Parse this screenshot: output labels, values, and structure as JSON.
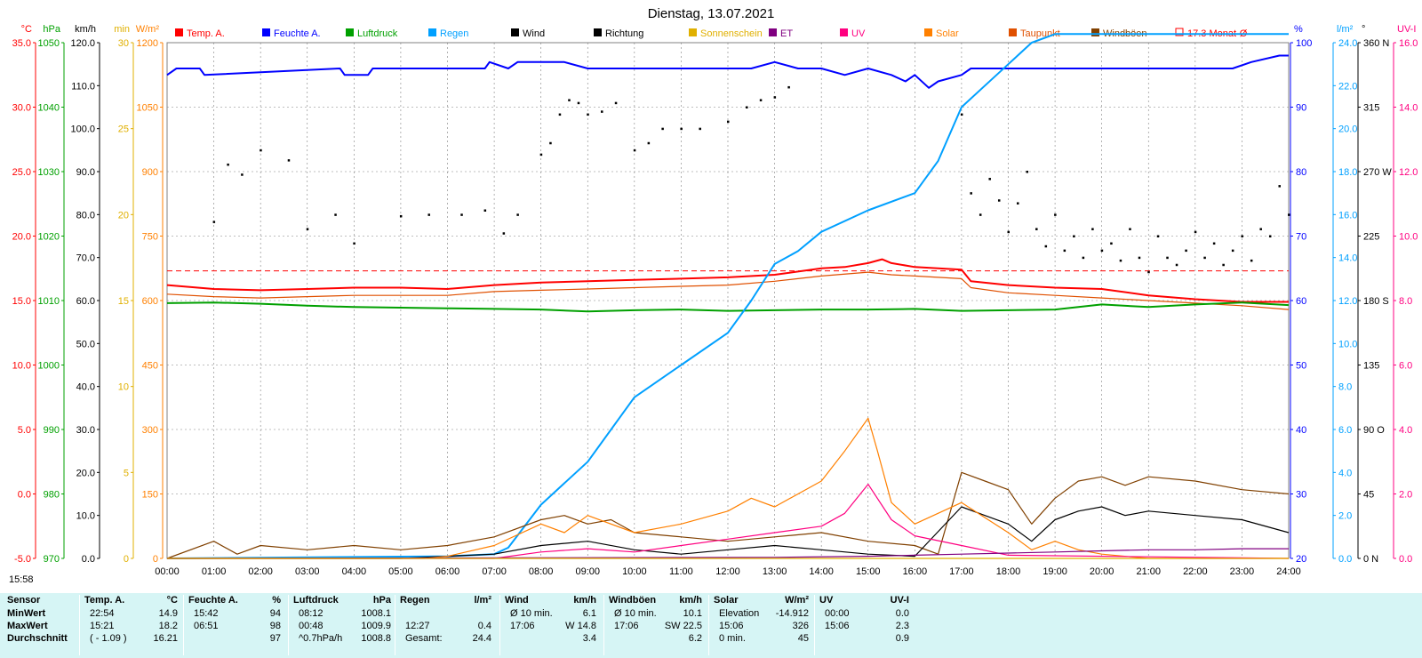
{
  "chart_data": {
    "type": "line",
    "title": "Dienstag, 13.07.2021",
    "x_ticks": [
      "00:00",
      "01:00",
      "02:00",
      "03:00",
      "04:00",
      "05:00",
      "06:00",
      "07:00",
      "08:00",
      "09:00",
      "10:00",
      "11:00",
      "12:00",
      "13:00",
      "14:00",
      "15:00",
      "16:00",
      "17:00",
      "18:00",
      "19:00",
      "20:00",
      "21:00",
      "22:00",
      "23:00",
      "24:00"
    ],
    "x_range_hours": [
      0,
      24
    ],
    "grid": true,
    "legend_position": "top",
    "legend": [
      {
        "label": "Temp. A.",
        "color": "#ff0000"
      },
      {
        "label": "Feuchte A.",
        "color": "#0000ff"
      },
      {
        "label": "Luftdruck",
        "color": "#00a000"
      },
      {
        "label": "Regen",
        "color": "#00a0ff"
      },
      {
        "label": "Wind",
        "color": "#000000"
      },
      {
        "label": "Richtung",
        "color": "#000000"
      },
      {
        "label": "Sonnenschein",
        "color": "#e0b000"
      },
      {
        "label": "ET",
        "color": "#800080"
      },
      {
        "label": "UV",
        "color": "#ff0080"
      },
      {
        "label": "Solar",
        "color": "#ff8000"
      },
      {
        "label": "Taupunkt",
        "color": "#e05000"
      },
      {
        "label": "Windböen",
        "color": "#804000"
      },
      {
        "label": "17.3 Monat-Ø",
        "color": "#ff0000"
      }
    ],
    "axes": [
      {
        "unit": "°C",
        "color": "#ff0000",
        "ticks": [
          "35.0",
          "30.0",
          "25.0",
          "20.0",
          "15.0",
          "10.0",
          "5.0",
          "0.0",
          "-5.0"
        ],
        "range": [
          -5,
          35
        ]
      },
      {
        "unit": "hPa",
        "color": "#00a000",
        "ticks": [
          "1050",
          "1040",
          "1030",
          "1020",
          "1010",
          "1000",
          "990",
          "980",
          "970"
        ],
        "range": [
          970,
          1050
        ]
      },
      {
        "unit": "km/h",
        "color": "#000000",
        "ticks": [
          "120.0",
          "110.0",
          "100.0",
          "90.0",
          "80.0",
          "70.0",
          "60.0",
          "50.0",
          "40.0",
          "30.0",
          "20.0",
          "10.0",
          "0.0"
        ],
        "range": [
          0,
          120
        ]
      },
      {
        "unit": "min",
        "color": "#e0b000",
        "ticks": [
          "30",
          "25",
          "20",
          "15",
          "10",
          "5",
          "0"
        ],
        "range": [
          0,
          30
        ]
      },
      {
        "unit": "W/m²",
        "color": "#ff8000",
        "ticks": [
          "1200",
          "1050",
          "900",
          "750",
          "600",
          "450",
          "300",
          "150",
          "0"
        ],
        "range": [
          0,
          1200
        ]
      },
      {
        "unit": "%",
        "color": "#0000ff",
        "ticks": [
          "100",
          "90",
          "80",
          "70",
          "60",
          "50",
          "40",
          "30",
          "20"
        ],
        "range": [
          20,
          100
        ]
      },
      {
        "unit": "l/m²",
        "color": "#00a0ff",
        "ticks": [
          "24.0",
          "22.0",
          "20.0",
          "18.0",
          "16.0",
          "14.0",
          "12.0",
          "10.0",
          "8.0",
          "6.0",
          "4.0",
          "2.0",
          "0.0"
        ],
        "range": [
          0,
          24
        ]
      },
      {
        "unit": "°",
        "color": "#000000",
        "ticks": [
          "360 N",
          "315",
          "270 W",
          "225",
          "180 S",
          "135",
          "90 O",
          "45",
          "0 N"
        ],
        "range": [
          0,
          360
        ]
      },
      {
        "unit": "UV-I",
        "color": "#ff0080",
        "ticks": [
          "16.0",
          "14.0",
          "12.0",
          "10.0",
          "8.0",
          "6.0",
          "4.0",
          "2.0",
          "0.0"
        ],
        "range": [
          0,
          16
        ]
      }
    ],
    "monthly_avg_temp": 17.3,
    "series": [
      {
        "name": "Temp. A.",
        "color": "#ff0000",
        "axis": "°C",
        "x": [
          0,
          1,
          2,
          3,
          4,
          5,
          6,
          7,
          8,
          9,
          10,
          11,
          12,
          13,
          14,
          14.5,
          15,
          15.3,
          15.5,
          16,
          16.5,
          17,
          17.2,
          18,
          19,
          20,
          21,
          22,
          23,
          24
        ],
        "y": [
          16.2,
          15.9,
          15.8,
          15.9,
          16.0,
          16.0,
          15.9,
          16.2,
          16.4,
          16.5,
          16.6,
          16.7,
          16.8,
          17.0,
          17.5,
          17.6,
          17.9,
          18.2,
          17.9,
          17.6,
          17.5,
          17.4,
          16.5,
          16.2,
          16.0,
          15.9,
          15.4,
          15.1,
          14.9,
          14.9
        ]
      },
      {
        "name": "Taupunkt",
        "color": "#e05000",
        "axis": "°C",
        "x": [
          0,
          1,
          2,
          3,
          4,
          5,
          6,
          7,
          8,
          9,
          10,
          11,
          12,
          13,
          14,
          15,
          15.5,
          16,
          17,
          17.2,
          18,
          19,
          20,
          21,
          22,
          23,
          24
        ],
        "y": [
          15.5,
          15.3,
          15.2,
          15.3,
          15.4,
          15.4,
          15.4,
          15.7,
          15.8,
          15.9,
          16.0,
          16.1,
          16.2,
          16.5,
          16.9,
          17.2,
          17.0,
          16.9,
          16.7,
          16.0,
          15.6,
          15.4,
          15.2,
          15.0,
          14.8,
          14.6,
          14.3
        ]
      },
      {
        "name": "Feuchte A.",
        "color": "#0000ff",
        "axis": "%",
        "x": [
          0,
          0.2,
          0.7,
          0.8,
          3.7,
          3.8,
          4.3,
          4.4,
          6.8,
          6.9,
          7.3,
          7.5,
          8.5,
          9.0,
          12.5,
          13.0,
          13.5,
          14.0,
          14.5,
          15.0,
          15.5,
          15.8,
          16.0,
          16.3,
          16.5,
          17.0,
          17.2,
          18.0,
          19.0,
          20.0,
          21.0,
          22.0,
          22.8,
          23.2,
          23.8,
          24.0
        ],
        "y": [
          95,
          96,
          96,
          95,
          96,
          95,
          95,
          96,
          96,
          97,
          96,
          97,
          97,
          96,
          96,
          97,
          96,
          96,
          95,
          96,
          95,
          94,
          95,
          93,
          94,
          95,
          96,
          96,
          96,
          96,
          96,
          96,
          96,
          97,
          98,
          98
        ]
      },
      {
        "name": "Luftdruck",
        "color": "#00a000",
        "axis": "hPa",
        "x": [
          0,
          1,
          2,
          3,
          4,
          5,
          6,
          7,
          8,
          9,
          10,
          11,
          12,
          13,
          14,
          15,
          16,
          17,
          18,
          19,
          20,
          21,
          22,
          23,
          24
        ],
        "y": [
          1009.6,
          1009.7,
          1009.5,
          1009.2,
          1009.0,
          1008.9,
          1008.8,
          1008.7,
          1008.6,
          1008.3,
          1008.5,
          1008.6,
          1008.4,
          1008.5,
          1008.6,
          1008.6,
          1008.7,
          1008.4,
          1008.5,
          1008.6,
          1009.4,
          1009.0,
          1009.4,
          1009.7,
          1009.3
        ]
      },
      {
        "name": "Regen",
        "color": "#00a0ff",
        "axis": "l/m²",
        "x": [
          0,
          6.0,
          7.0,
          7.3,
          8.0,
          9.0,
          10.0,
          11.0,
          12.0,
          12.5,
          13.0,
          13.5,
          14.0,
          15.0,
          16.0,
          16.5,
          17.0,
          17.5,
          18.0,
          18.5,
          19.0,
          19.2,
          20.0,
          21.0,
          22.0,
          23.0,
          23.5,
          24.0
        ],
        "y": [
          0,
          0.1,
          0.2,
          0.5,
          2.5,
          4.5,
          7.5,
          9.0,
          10.5,
          12.0,
          13.7,
          14.3,
          15.2,
          16.2,
          17.0,
          18.5,
          21.0,
          22.0,
          23.0,
          24.0,
          24.4,
          24.4,
          24.4,
          24.4,
          24.4,
          24.4,
          24.4,
          24.4
        ]
      },
      {
        "name": "Windböen",
        "color": "#804000",
        "axis": "km/h",
        "x": [
          0,
          1,
          1.5,
          2,
          3,
          4,
          5,
          6,
          7,
          8,
          8.5,
          9,
          9.5,
          10,
          11,
          12,
          13,
          14,
          15,
          16,
          16.5,
          17,
          17.5,
          18,
          18.5,
          19,
          19.5,
          20,
          20.5,
          21,
          22,
          23,
          24
        ],
        "y": [
          0,
          4,
          1,
          3,
          2,
          3,
          2,
          3,
          5,
          9,
          10,
          8,
          9,
          6,
          5,
          4,
          5,
          6,
          4,
          3,
          1,
          20,
          18,
          16,
          8,
          14,
          18,
          19,
          17,
          19,
          18,
          16,
          15
        ]
      },
      {
        "name": "Wind",
        "color": "#000000",
        "axis": "km/h",
        "x": [
          0,
          1,
          2,
          3,
          4,
          5,
          6,
          7,
          8,
          9,
          10,
          11,
          12,
          13,
          14,
          15,
          16,
          17,
          17.5,
          18,
          18.5,
          19,
          19.5,
          20,
          20.5,
          21,
          22,
          23,
          24
        ],
        "y": [
          0,
          0,
          0,
          0,
          0,
          0,
          0.5,
          1,
          3,
          4,
          2,
          1,
          2,
          3,
          2,
          1,
          0.5,
          12,
          10,
          8,
          4,
          9,
          11,
          12,
          10,
          11,
          10,
          9,
          6
        ]
      },
      {
        "name": "Solar",
        "color": "#ff8000",
        "axis": "W/m²",
        "x": [
          0,
          5.5,
          6,
          7,
          8,
          8.5,
          9,
          10,
          11,
          12,
          12.5,
          13,
          14,
          14.5,
          15,
          15.2,
          15.5,
          16,
          17,
          18,
          18.5,
          19,
          19.5,
          20,
          21,
          24
        ],
        "y": [
          0,
          0,
          5,
          30,
          80,
          60,
          100,
          60,
          80,
          110,
          140,
          120,
          180,
          250,
          326,
          250,
          130,
          80,
          130,
          60,
          20,
          40,
          20,
          10,
          0,
          0
        ]
      },
      {
        "name": "UV",
        "color": "#ff0080",
        "axis": "UV-I",
        "x": [
          0,
          7,
          8,
          9,
          10,
          11,
          12,
          13,
          14,
          14.5,
          15,
          15.5,
          16,
          17,
          18,
          24
        ],
        "y": [
          0,
          0,
          0.2,
          0.3,
          0.2,
          0.4,
          0.6,
          0.8,
          1.0,
          1.4,
          2.3,
          1.2,
          0.7,
          0.4,
          0.1,
          0
        ]
      },
      {
        "name": "ET",
        "color": "#800080",
        "axis": "l/m²",
        "x": [
          0,
          13,
          15,
          16,
          17,
          18,
          19,
          20,
          21,
          22,
          23,
          24
        ],
        "y": [
          0,
          0.05,
          0.1,
          0.15,
          0.2,
          0.25,
          0.3,
          0.35,
          0.4,
          0.4,
          0.45,
          0.45
        ]
      },
      {
        "name": "Richtung",
        "type": "scatter",
        "color": "#000000",
        "axis": "°",
        "x": [
          1.0,
          1.3,
          1.6,
          2.0,
          2.6,
          3.0,
          3.6,
          4.0,
          5.0,
          5.6,
          6.3,
          6.8,
          7.2,
          7.5,
          8.0,
          8.2,
          8.4,
          8.6,
          8.8,
          9.0,
          9.3,
          9.6,
          10.0,
          10.3,
          10.6,
          11.0,
          11.4,
          12.0,
          12.4,
          12.7,
          13.0,
          13.3,
          17.0,
          17.2,
          17.4,
          17.6,
          17.8,
          18.0,
          18.2,
          18.4,
          18.6,
          18.8,
          19.0,
          19.2,
          19.4,
          19.6,
          19.8,
          20.0,
          20.2,
          20.4,
          20.6,
          20.8,
          21.0,
          21.2,
          21.4,
          21.6,
          21.8,
          22.0,
          22.2,
          22.4,
          22.6,
          22.8,
          23.0,
          23.2,
          23.4,
          23.6,
          23.8,
          24.0
        ],
        "y": [
          235,
          275,
          268,
          285,
          278,
          230,
          240,
          220,
          239,
          240,
          240,
          243,
          227,
          240,
          282,
          290,
          310,
          320,
          318,
          310,
          312,
          318,
          285,
          290,
          300,
          300,
          300,
          305,
          315,
          320,
          322,
          329,
          310,
          255,
          240,
          265,
          250,
          228,
          248,
          270,
          230,
          218,
          240,
          215,
          225,
          210,
          230,
          215,
          220,
          208,
          230,
          210,
          200,
          225,
          210,
          205,
          215,
          228,
          210,
          220,
          205,
          215,
          225,
          208,
          230,
          225,
          260,
          240
        ]
      },
      {
        "name": "Sonnenschein",
        "color": "#e0b000",
        "axis": "min",
        "x": [
          0,
          24
        ],
        "y": [
          0,
          0
        ]
      }
    ]
  },
  "timestamp": "15:58",
  "summary": {
    "headers": {
      "sensor": "Sensor",
      "temp": "Temp. A.",
      "temp_unit": "°C",
      "hum": "Feuchte A.",
      "hum_unit": "%",
      "press": "Luftdruck",
      "press_unit": "hPa",
      "rain": "Regen",
      "rain_unit": "l/m²",
      "wind": "Wind",
      "wind_unit": "km/h",
      "gust": "Windböen",
      "gust_unit": "km/h",
      "solar": "Solar",
      "solar_unit": "W/m²",
      "uv": "UV",
      "uv_unit": "UV-I"
    },
    "row_labels": [
      "MinWert",
      "MaxWert",
      "Durchschnitt"
    ],
    "temp": [
      [
        "22:54",
        "14.9"
      ],
      [
        "15:21",
        "18.2"
      ],
      [
        "( - 1.09 )",
        "16.21"
      ]
    ],
    "hum": [
      [
        "15:42",
        "94"
      ],
      [
        "06:51",
        "98"
      ],
      [
        "",
        "97"
      ]
    ],
    "press": [
      [
        "08:12",
        "1008.1"
      ],
      [
        "00:48",
        "1009.9"
      ],
      [
        "^0.7hPa/h",
        "1008.8"
      ]
    ],
    "rain": [
      [
        "",
        ""
      ],
      [
        "12:27",
        "0.4"
      ],
      [
        "Gesamt:",
        "24.4"
      ]
    ],
    "wind": [
      [
        "Ø 10 min.",
        "6.1"
      ],
      [
        "17:06",
        "W 14.8"
      ],
      [
        "",
        "3.4"
      ]
    ],
    "gust": [
      [
        "Ø 10 min.",
        "10.1"
      ],
      [
        "17:06",
        "SW 22.5"
      ],
      [
        "",
        "6.2"
      ]
    ],
    "solar": [
      [
        "Elevation",
        "-14.912"
      ],
      [
        "15:06",
        "326"
      ],
      [
        "0 min.",
        "45"
      ]
    ],
    "uv": [
      [
        "00:00",
        "0.0"
      ],
      [
        "15:06",
        "2.3"
      ],
      [
        "",
        "0.9"
      ]
    ]
  }
}
